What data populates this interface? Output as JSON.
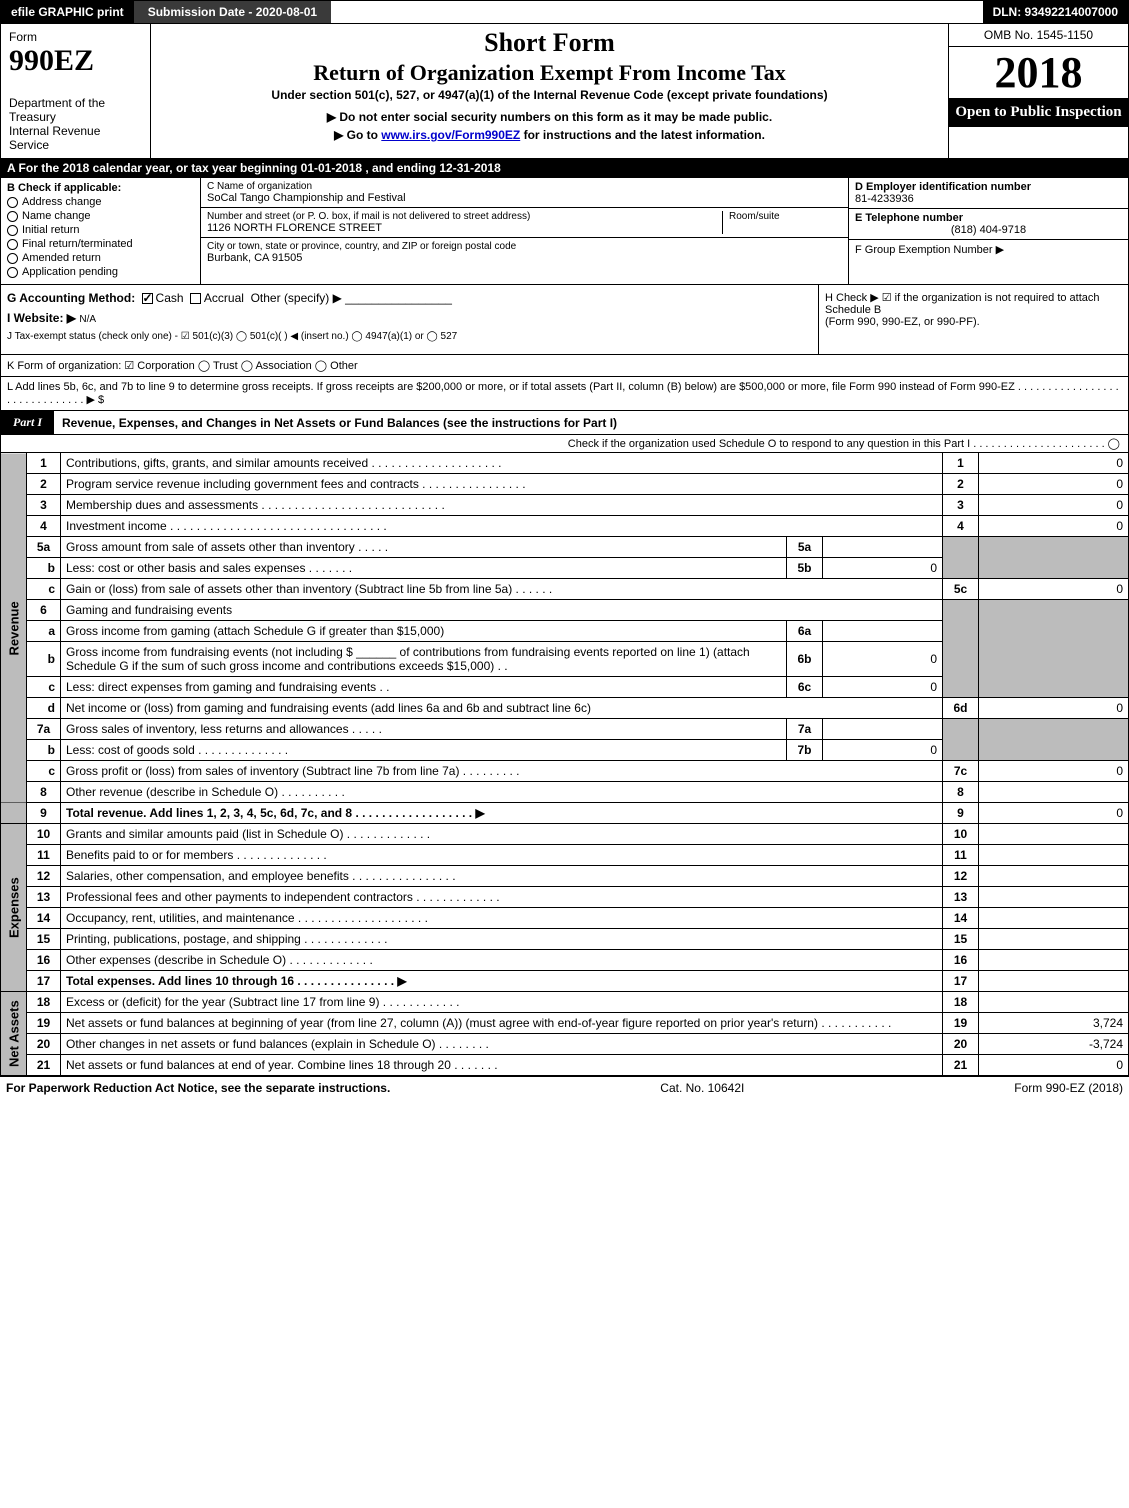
{
  "topbar": {
    "efile": "efile GRAPHIC print",
    "submission": "Submission Date - 2020-08-01",
    "dln": "DLN: 93492214007000"
  },
  "header": {
    "form_word": "Form",
    "form_num": "990EZ",
    "dept1": "Department of the Treasury",
    "dept2": "Internal Revenue Service",
    "short_form": "Short Form",
    "title": "Return of Organization Exempt From Income Tax",
    "under": "Under section 501(c), 527, or 4947(a)(1) of the Internal Revenue Code (except private foundations)",
    "arrow1": "▶ Do not enter social security numbers on this form as it may be made public.",
    "arrow2_pre": "▶ Go to ",
    "arrow2_link": "www.irs.gov/Form990EZ",
    "arrow2_post": " for instructions and the latest information.",
    "omb": "OMB No. 1545-1150",
    "year": "2018",
    "open": "Open to Public Inspection"
  },
  "row_a": "A  For the 2018 calendar year, or tax year beginning 01-01-2018          , and ending 12-31-2018",
  "section_b": {
    "title": "B  Check if applicable:",
    "items": [
      "Address change",
      "Name change",
      "Initial return",
      "Final return/terminated",
      "Amended return",
      "Application pending"
    ]
  },
  "section_c": {
    "name_lbl": "C Name of organization",
    "name_val": "SoCal Tango Championship and Festival",
    "street_lbl": "Number and street (or P. O. box, if mail is not delivered to street address)",
    "street_val": "1126 NORTH FLORENCE STREET",
    "room_lbl": "Room/suite",
    "city_lbl": "City or town, state or province, country, and ZIP or foreign postal code",
    "city_val": "Burbank, CA  91505"
  },
  "section_d": {
    "ein_lbl": "D Employer identification number",
    "ein_val": "81-4233936",
    "tel_lbl": "E Telephone number",
    "tel_val": "(818) 404-9718",
    "grp_lbl": "F Group Exemption Number  ▶"
  },
  "row_g": {
    "acct": "G Accounting Method:",
    "cash": "Cash",
    "accrual": "Accrual",
    "other": "Other (specify) ▶",
    "website_lbl": "I Website: ▶",
    "website_val": "N/A",
    "tax_exempt": "J Tax-exempt status (check only one) -  ☑ 501(c)(3)  ◯ 501(c)(  ) ◀ (insert no.)  ◯ 4947(a)(1) or  ◯ 527"
  },
  "row_h": {
    "text1": "H  Check ▶  ☑  if the organization is not required to attach Schedule B",
    "text2": "(Form 990, 990-EZ, or 990-PF)."
  },
  "row_k": "K Form of organization:   ☑ Corporation   ◯ Trust   ◯ Association   ◯ Other",
  "row_l": "L Add lines 5b, 6c, and 7b to line 9 to determine gross receipts. If gross receipts are $200,000 or more, or if total assets (Part II, column (B) below) are $500,000 or more, file Form 990 instead of Form 990-EZ  . . . . . . . . . . . . . . . . . . . . . . . . . . . . . .  ▶ $",
  "part1": {
    "label": "Part I",
    "title": "Revenue, Expenses, and Changes in Net Assets or Fund Balances (see the instructions for Part I)",
    "check": "Check if the organization used Schedule O to respond to any question in this Part I . . . . . . . . . . . . . . . . . . . . . .  ◯"
  },
  "side_labels": {
    "revenue": "Revenue",
    "expenses": "Expenses",
    "netassets": "Net Assets"
  },
  "lines": {
    "l1": {
      "n": "1",
      "d": "Contributions, gifts, grants, and similar amounts received . . . . . . . . . . . . . . . . . . . .",
      "ln": "1",
      "v": "0"
    },
    "l2": {
      "n": "2",
      "d": "Program service revenue including government fees and contracts . . . . . . . . . . . . . . . .",
      "ln": "2",
      "v": "0"
    },
    "l3": {
      "n": "3",
      "d": "Membership dues and assessments . . . . . . . . . . . . . . . . . . . . . . . . . . . .",
      "ln": "3",
      "v": "0"
    },
    "l4": {
      "n": "4",
      "d": "Investment income . . . . . . . . . . . . . . . . . . . . . . . . . . . . . . . . .",
      "ln": "4",
      "v": "0"
    },
    "l5a": {
      "n": "5a",
      "d": "Gross amount from sale of assets other than inventory . . . . .",
      "il": "5a",
      "iv": ""
    },
    "l5b": {
      "n": "b",
      "d": "Less: cost or other basis and sales expenses . . . . . . .",
      "il": "5b",
      "iv": "0"
    },
    "l5c": {
      "n": "c",
      "d": "Gain or (loss) from sale of assets other than inventory (Subtract line 5b from line 5a) . . . . . .",
      "ln": "5c",
      "v": "0"
    },
    "l6": {
      "n": "6",
      "d": "Gaming and fundraising events"
    },
    "l6a": {
      "n": "a",
      "d": "Gross income from gaming (attach Schedule G if greater than $15,000)",
      "il": "6a",
      "iv": ""
    },
    "l6b": {
      "n": "b",
      "d": "Gross income from fundraising events (not including $ ______ of contributions from fundraising events reported on line 1) (attach Schedule G if the sum of such gross income and contributions exceeds $15,000)   .  .",
      "il": "6b",
      "iv": "0"
    },
    "l6c": {
      "n": "c",
      "d": "Less: direct expenses from gaming and fundraising events    .  .",
      "il": "6c",
      "iv": "0"
    },
    "l6d": {
      "n": "d",
      "d": "Net income or (loss) from gaming and fundraising events (add lines 6a and 6b and subtract line 6c)",
      "ln": "6d",
      "v": "0"
    },
    "l7a": {
      "n": "7a",
      "d": "Gross sales of inventory, less returns and allowances . . . . .",
      "il": "7a",
      "iv": ""
    },
    "l7b": {
      "n": "b",
      "d": "Less: cost of goods sold       . . . . . . . . . . . . . .",
      "il": "7b",
      "iv": "0"
    },
    "l7c": {
      "n": "c",
      "d": "Gross profit or (loss) from sales of inventory (Subtract line 7b from line 7a) . . . . . . . . .",
      "ln": "7c",
      "v": "0"
    },
    "l8": {
      "n": "8",
      "d": "Other revenue (describe in Schedule O)                    . . . . . . . . . .",
      "ln": "8",
      "v": ""
    },
    "l9": {
      "n": "9",
      "d": "Total revenue. Add lines 1, 2, 3, 4, 5c, 6d, 7c, and 8 . . . . . . . . . . . . . . . . . .   ▶",
      "ln": "9",
      "v": "0"
    },
    "l10": {
      "n": "10",
      "d": "Grants and similar amounts paid (list in Schedule O)        . . . . . . . . . . . . .",
      "ln": "10",
      "v": ""
    },
    "l11": {
      "n": "11",
      "d": "Benefits paid to or for members                 . . . . . . . . . . . . . .",
      "ln": "11",
      "v": ""
    },
    "l12": {
      "n": "12",
      "d": "Salaries, other compensation, and employee benefits . . . . . . . . . . . . . . . .",
      "ln": "12",
      "v": ""
    },
    "l13": {
      "n": "13",
      "d": "Professional fees and other payments to independent contractors . . . . . . . . . . . . .",
      "ln": "13",
      "v": ""
    },
    "l14": {
      "n": "14",
      "d": "Occupancy, rent, utilities, and maintenance . . . . . . . . . . . . . . . . . . . .",
      "ln": "14",
      "v": ""
    },
    "l15": {
      "n": "15",
      "d": "Printing, publications, postage, and shipping          . . . . . . . . . . . . .",
      "ln": "15",
      "v": ""
    },
    "l16": {
      "n": "16",
      "d": "Other expenses (describe in Schedule O)            . . . . . . . . . . . . .",
      "ln": "16",
      "v": ""
    },
    "l17": {
      "n": "17",
      "d": "Total expenses. Add lines 10 through 16       . . . . . . . . . . . . . . .   ▶",
      "ln": "17",
      "v": ""
    },
    "l18": {
      "n": "18",
      "d": "Excess or (deficit) for the year (Subtract line 17 from line 9)      . . . . . . . . . . . .",
      "ln": "18",
      "v": ""
    },
    "l19": {
      "n": "19",
      "d": "Net assets or fund balances at beginning of year (from line 27, column (A)) (must agree with end-of-year figure reported on prior year's return)           . . . . . . . . . . .",
      "ln": "19",
      "v": "3,724"
    },
    "l20": {
      "n": "20",
      "d": "Other changes in net assets or fund balances (explain in Schedule O)     . . . . . . . .",
      "ln": "20",
      "v": "-3,724"
    },
    "l21": {
      "n": "21",
      "d": "Net assets or fund balances at end of year. Combine lines 18 through 20      . . . . . . .",
      "ln": "21",
      "v": "0"
    }
  },
  "footer": {
    "left": "For Paperwork Reduction Act Notice, see the separate instructions.",
    "mid": "Cat. No. 10642I",
    "right": "Form 990-EZ (2018)"
  },
  "colors": {
    "black": "#000000",
    "darkgrey": "#3a3a3a",
    "lightgrey": "#bcbcbc",
    "white": "#ffffff"
  }
}
